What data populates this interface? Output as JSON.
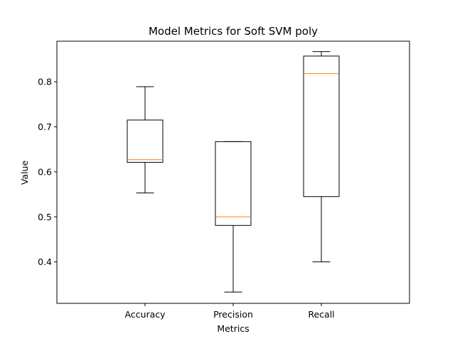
{
  "chart_data": {
    "type": "box",
    "title": "Model Metrics for Soft SVM poly",
    "xlabel": "Metrics",
    "ylabel": "Value",
    "ylim": [
      0.308,
      0.89
    ],
    "yticks": [
      0.4,
      0.5,
      0.6,
      0.7,
      0.8
    ],
    "ytick_labels": [
      "0.4",
      "0.5",
      "0.6",
      "0.7",
      "0.8"
    ],
    "categories": [
      "Accuracy",
      "Precision",
      "Recall"
    ],
    "boxes": [
      {
        "category": "Accuracy",
        "whisker_low": 0.553,
        "q1": 0.621,
        "median": 0.627,
        "q3": 0.715,
        "whisker_high": 0.789
      },
      {
        "category": "Precision",
        "whisker_low": 0.333,
        "q1": 0.481,
        "median": 0.5,
        "q3": 0.667,
        "whisker_high": 0.667
      },
      {
        "category": "Recall",
        "whisker_low": 0.4,
        "q1": 0.545,
        "median": 0.818,
        "q3": 0.857,
        "whisker_high": 0.867
      }
    ],
    "grid": false,
    "colors": {
      "box": "#000000",
      "median": "#ff7f0e"
    }
  }
}
